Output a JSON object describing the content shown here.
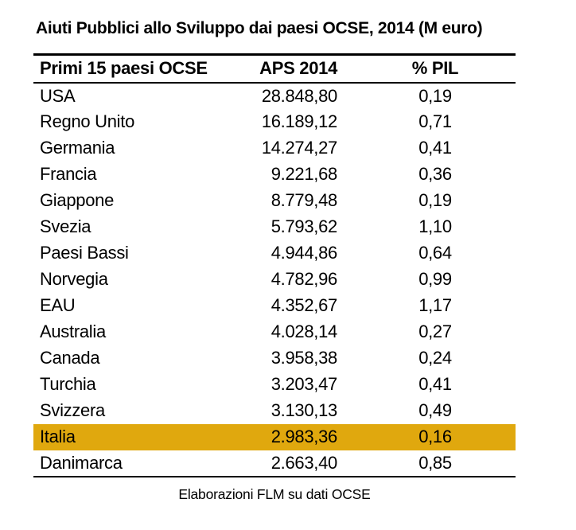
{
  "title": "Aiuti Pubblici allo Sviluppo dai paesi OCSE, 2014 (M euro)",
  "table": {
    "columns": [
      "Primi 15 paesi OCSE",
      "APS 2014",
      "% PIL"
    ],
    "highlighted_country": "Italia",
    "rows": [
      {
        "country": "USA",
        "aps": "28.848,80",
        "pil": "0,19"
      },
      {
        "country": "Regno Unito",
        "aps": "16.189,12",
        "pil": "0,71"
      },
      {
        "country": "Germania",
        "aps": "14.274,27",
        "pil": "0,41"
      },
      {
        "country": "Francia",
        "aps": "9.221,68",
        "pil": "0,36"
      },
      {
        "country": "Giappone",
        "aps": "8.779,48",
        "pil": "0,19"
      },
      {
        "country": "Svezia",
        "aps": "5.793,62",
        "pil": "1,10"
      },
      {
        "country": "Paesi Bassi",
        "aps": "4.944,86",
        "pil": "0,64"
      },
      {
        "country": "Norvegia",
        "aps": "4.782,96",
        "pil": "0,99"
      },
      {
        "country": "EAU",
        "aps": "4.352,67",
        "pil": "1,17"
      },
      {
        "country": "Australia",
        "aps": "4.028,14",
        "pil": "0,27"
      },
      {
        "country": "Canada",
        "aps": "3.958,38",
        "pil": "0,24"
      },
      {
        "country": "Turchia",
        "aps": "3.203,47",
        "pil": "0,41"
      },
      {
        "country": "Svizzera",
        "aps": "3.130,13",
        "pil": "0,49"
      },
      {
        "country": "Italia",
        "aps": "2.983,36",
        "pil": "0,16"
      },
      {
        "country": "Danimarca",
        "aps": "2.663,40",
        "pil": "0,85"
      }
    ]
  },
  "footer": "Elaborazioni FLM su dati OCSE",
  "colors": {
    "highlight": "#e0a80e",
    "border": "#000000",
    "text": "#000000"
  },
  "chart_data": {
    "type": "table",
    "title": "Aiuti Pubblici allo Sviluppo dai paesi OCSE, 2014 (M euro)",
    "columns": [
      "Primi 15 paesi OCSE",
      "APS 2014",
      "% PIL"
    ],
    "rows": [
      [
        "USA",
        28848.8,
        0.19
      ],
      [
        "Regno Unito",
        16189.12,
        0.71
      ],
      [
        "Germania",
        14274.27,
        0.41
      ],
      [
        "Francia",
        9221.68,
        0.36
      ],
      [
        "Giappone",
        8779.48,
        0.19
      ],
      [
        "Svezia",
        5793.62,
        1.1
      ],
      [
        "Paesi Bassi",
        4944.86,
        0.64
      ],
      [
        "Norvegia",
        4782.96,
        0.99
      ],
      [
        "EAU",
        4352.67,
        1.17
      ],
      [
        "Australia",
        4028.14,
        0.27
      ],
      [
        "Canada",
        3958.38,
        0.24
      ],
      [
        "Turchia",
        3203.47,
        0.41
      ],
      [
        "Svizzera",
        3130.13,
        0.49
      ],
      [
        "Italia",
        2983.36,
        0.16
      ],
      [
        "Danimarca",
        2663.4,
        0.85
      ]
    ],
    "highlighted_row": "Italia",
    "note": "Elaborazioni FLM su dati OCSE"
  }
}
